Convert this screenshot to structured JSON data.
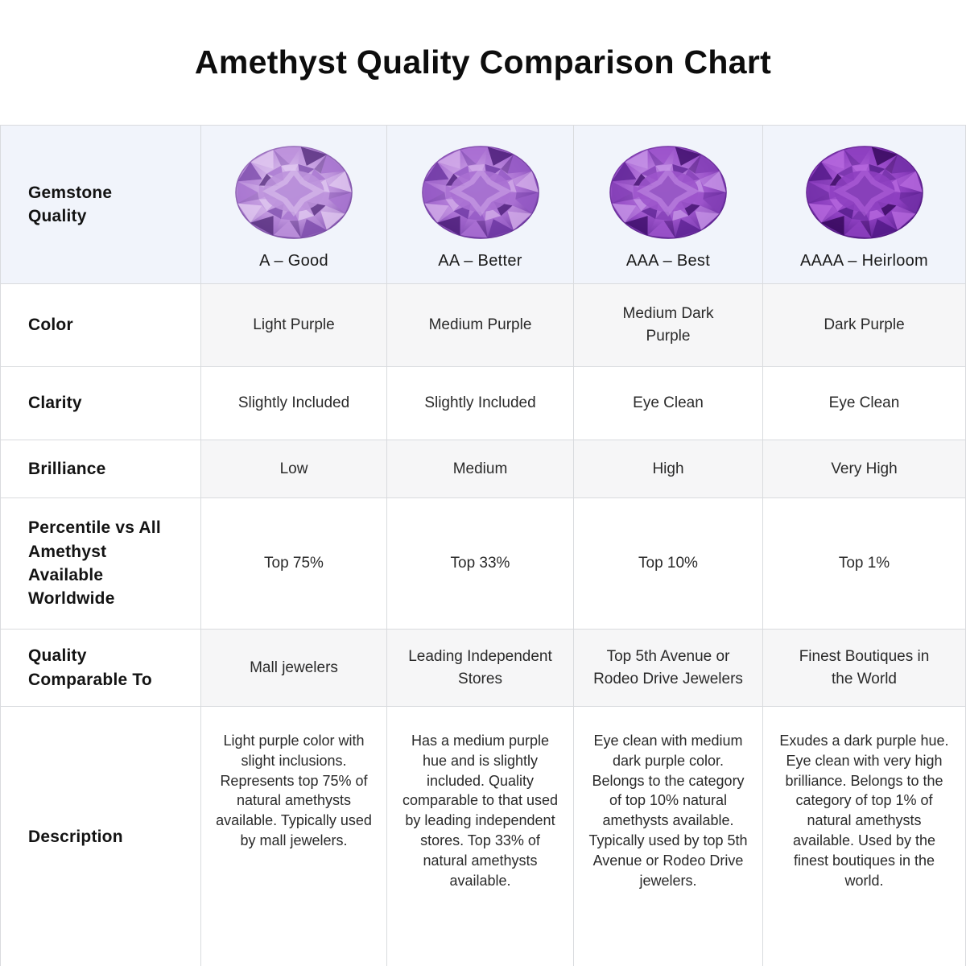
{
  "title": "Amethyst Quality Comparison Chart",
  "colors": {
    "header_bg": "#f1f4fb",
    "alt_row_bg": "#f6f6f7",
    "border": "#d9dbde",
    "title_text": "#0d0d0d",
    "amethyst_accent": "#8a3fbd"
  },
  "chart_data": {
    "type": "table",
    "title": "Amethyst Quality Comparison Chart",
    "corner_label": "Gemstone\nQuality",
    "columns": [
      "A – Good",
      "AA – Better",
      "AAA – Best",
      "AAAA – Heirloom"
    ],
    "rows": [
      {
        "label": "Color",
        "values": [
          "Light Purple",
          "Medium Purple",
          "Medium Dark\nPurple",
          "Dark Purple"
        ]
      },
      {
        "label": "Clarity",
        "values": [
          "Slightly Included",
          "Slightly Included",
          "Eye Clean",
          "Eye Clean"
        ]
      },
      {
        "label": "Brilliance",
        "values": [
          "Low",
          "Medium",
          "High",
          "Very High"
        ]
      },
      {
        "label": "Percentile vs All\nAmethyst\nAvailable\nWorldwide",
        "values": [
          "Top 75%",
          "Top 33%",
          "Top 10%",
          "Top 1%"
        ]
      },
      {
        "label": "Quality\nComparable To",
        "values": [
          "Mall jewelers",
          "Leading Independent\nStores",
          "Top 5th Avenue or\nRodeo Drive Jewelers",
          "Finest Boutiques in\nthe World"
        ]
      },
      {
        "label": "Description",
        "values": [
          "Light purple color with slight inclusions. Represents top 75% of natural amethysts available. Typically used by mall jewelers.",
          "Has a medium purple hue and is slightly included. Quality comparable to that used by leading independent stores. Top 33% of natural amethysts available.",
          "Eye clean with medium dark purple color. Belongs to the category of top 10% natural amethysts available. Typically used by top 5th Avenue or Rodeo Drive jewelers.",
          "Exudes a dark purple hue. Eye clean with very high brilliance. Belongs to the category of top 1% of natural amethysts available. Used by the finest boutiques in the world."
        ]
      }
    ]
  },
  "gems": [
    {
      "name": "amethyst-a-good",
      "light": "#e0c8f0",
      "base": "#bd92dc",
      "mid": "#a876d0",
      "dark": "#8050ae",
      "deep": "#593180"
    },
    {
      "name": "amethyst-aa-better",
      "light": "#d2abe9",
      "base": "#a96fd2",
      "mid": "#9459c4",
      "dark": "#6d37a2",
      "deep": "#4b1d78"
    },
    {
      "name": "amethyst-aaa-best",
      "light": "#c693e6",
      "base": "#9c54cb",
      "mid": "#8440b6",
      "dark": "#5f2495",
      "deep": "#400f6c"
    },
    {
      "name": "amethyst-aaaa-heirloom",
      "light": "#b668de",
      "base": "#8d3fc0",
      "mid": "#7330a8",
      "dark": "#531a88",
      "deep": "#36085c"
    }
  ]
}
